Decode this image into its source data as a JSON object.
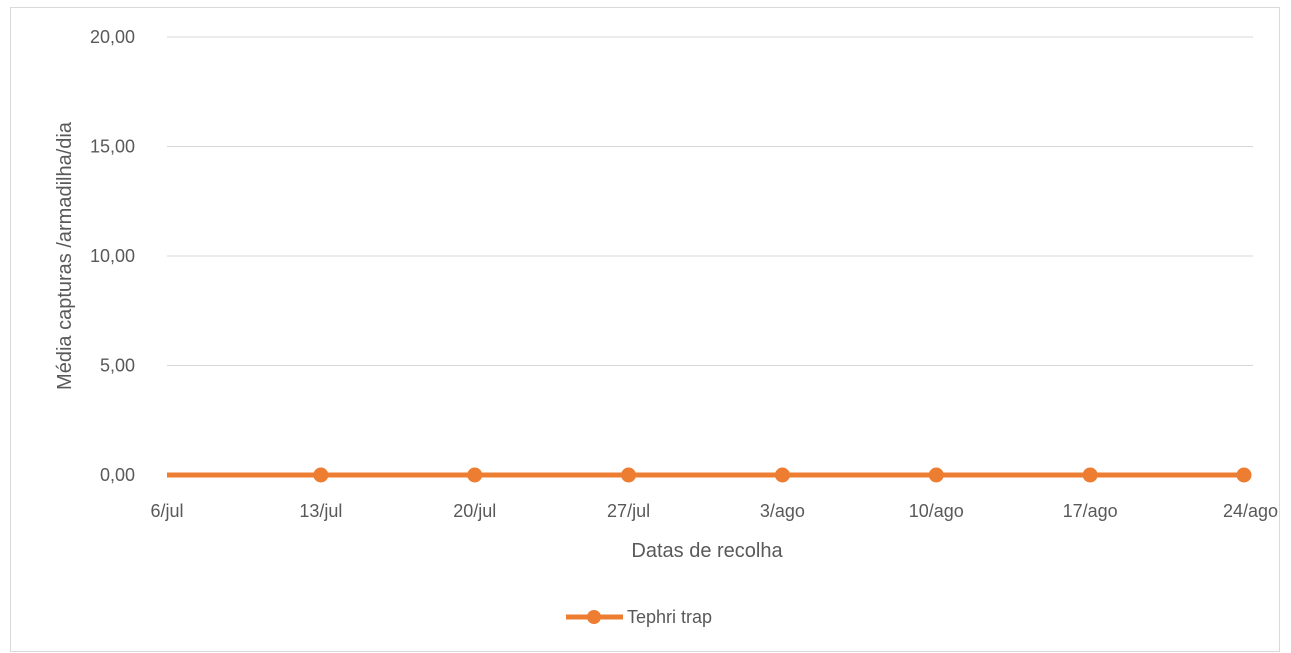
{
  "chart_data": {
    "type": "line",
    "title": "",
    "xlabel": "Datas de recolha",
    "ylabel": "Média capturas /armadilha/dia",
    "categories": [
      "6/jul",
      "13/jul",
      "20/jul",
      "27/jul",
      "3/ago",
      "10/ago",
      "17/ago",
      "24/ago"
    ],
    "y_ticks": [
      "0,00",
      "5,00",
      "10,00",
      "15,00",
      "20,00"
    ],
    "ylim": [
      0,
      20
    ],
    "grid": true,
    "legend_position": "bottom",
    "series": [
      {
        "name": "Tephri trap",
        "color": "#ED7D31",
        "x": [
          "6/jul",
          "13/jul",
          "20/jul",
          "27/jul",
          "3/ago",
          "10/ago",
          "17/ago",
          "24/ago"
        ],
        "values": [
          0,
          0,
          0,
          0,
          0,
          0,
          0,
          0
        ],
        "markers": [
          false,
          true,
          true,
          true,
          true,
          true,
          true,
          true
        ]
      }
    ]
  }
}
